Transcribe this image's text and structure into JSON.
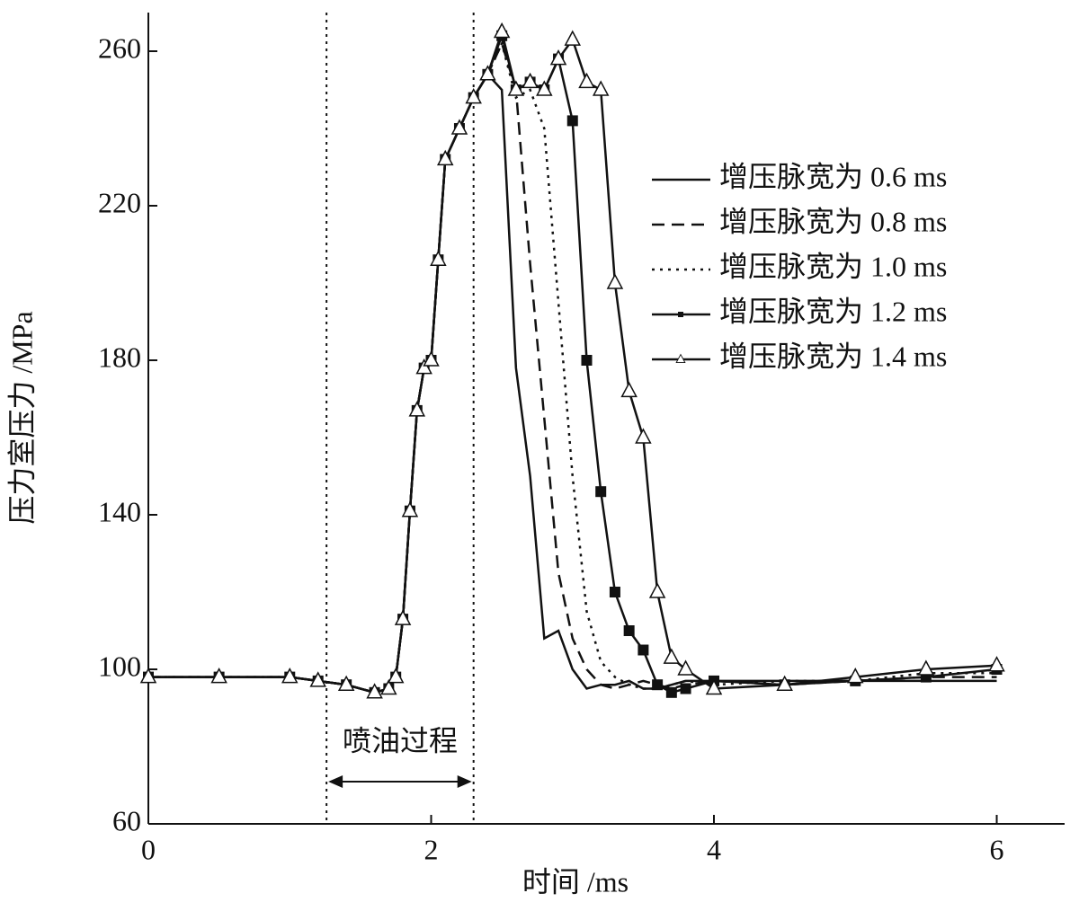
{
  "chart_data": {
    "type": "line",
    "x_label": "时间 /ms",
    "y_label": "压力室压力 /MPa",
    "xlim": [
      0,
      6.48
    ],
    "ylim": [
      60,
      270
    ],
    "xticks": [
      0,
      2,
      4,
      6
    ],
    "yticks": [
      60,
      100,
      140,
      180,
      220,
      260
    ],
    "grid": false,
    "legend": "center right",
    "vlines": [
      1.26,
      2.3
    ],
    "annotation": "喷油过程",
    "x": [
      0,
      0.5,
      1.0,
      1.2,
      1.4,
      1.6,
      1.7,
      1.75,
      1.8,
      1.85,
      1.9,
      1.95,
      2.0,
      2.05,
      2.1,
      2.2,
      2.3,
      2.4,
      2.5,
      2.6,
      2.7,
      2.8,
      2.9,
      3.0,
      3.1,
      3.2,
      3.3,
      3.4,
      3.5,
      3.6,
      3.7,
      3.8,
      4.0,
      4.5,
      5.0,
      5.5,
      6.0
    ],
    "series": [
      {
        "name": "增压脉宽为 0.6 ms",
        "color": "#111111",
        "dash": "solid",
        "marker": "none",
        "values": [
          98,
          98,
          98,
          97,
          96,
          94,
          95,
          98,
          113,
          141,
          167,
          178,
          180,
          206,
          232,
          240,
          248,
          254,
          250,
          178,
          150,
          108,
          110,
          100,
          95,
          96,
          96,
          97,
          95,
          95,
          96,
          97,
          97,
          97,
          97,
          97,
          97
        ]
      },
      {
        "name": "增压脉宽为 0.8 ms",
        "color": "#111111",
        "dash": "dashed",
        "marker": "none",
        "values": [
          98,
          98,
          98,
          97,
          96,
          94,
          95,
          98,
          113,
          141,
          167,
          178,
          180,
          206,
          232,
          240,
          248,
          254,
          262,
          250,
          205,
          165,
          125,
          108,
          100,
          96,
          95,
          96,
          97,
          96,
          95,
          96,
          97,
          96,
          97,
          98,
          98
        ]
      },
      {
        "name": "增压脉宽为 1.0 ms",
        "color": "#111111",
        "dash": "dotted",
        "marker": "none",
        "values": [
          98,
          98,
          98,
          97,
          96,
          94,
          95,
          98,
          113,
          141,
          167,
          178,
          180,
          206,
          232,
          240,
          248,
          254,
          262,
          248,
          250,
          240,
          195,
          150,
          115,
          102,
          98,
          96,
          95,
          95,
          96,
          97,
          96,
          97,
          97,
          99,
          99
        ]
      },
      {
        "name": "增压脉宽为 1.2 ms",
        "color": "#111111",
        "dash": "solid",
        "marker": "square",
        "values": [
          98,
          98,
          98,
          97,
          96,
          94,
          95,
          98,
          113,
          141,
          167,
          178,
          180,
          206,
          232,
          240,
          248,
          254,
          264,
          250,
          252,
          250,
          258,
          242,
          180,
          146,
          120,
          110,
          105,
          96,
          94,
          95,
          97,
          96,
          97,
          98,
          100
        ]
      },
      {
        "name": "增压脉宽为 1.4 ms",
        "color": "#111111",
        "dash": "solid",
        "marker": "triangle",
        "values": [
          98,
          98,
          98,
          97,
          96,
          94,
          95,
          98,
          113,
          141,
          167,
          178,
          180,
          206,
          232,
          240,
          248,
          254,
          265,
          250,
          252,
          250,
          258,
          263,
          252,
          250,
          200,
          172,
          160,
          120,
          103,
          100,
          95,
          96,
          98,
          100,
          101
        ]
      }
    ]
  }
}
